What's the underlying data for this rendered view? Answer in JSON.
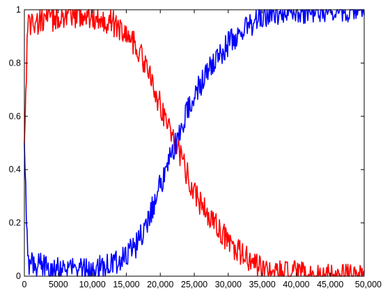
{
  "chart_data": {
    "type": "line",
    "title": "",
    "xlabel": "",
    "ylabel": "",
    "xlim": [
      0,
      50000
    ],
    "ylim": [
      0,
      1
    ],
    "grid": false,
    "x_ticks": [
      0,
      5000,
      10000,
      15000,
      20000,
      25000,
      30000,
      35000,
      40000,
      45000,
      50000
    ],
    "x_tick_labels": [
      "0",
      "5000",
      "10,000",
      "15,000",
      "20,000",
      "25,000",
      "30,000",
      "35,000",
      "40,000",
      "45,000",
      "50,000"
    ],
    "y_ticks": [
      0,
      0.2,
      0.4,
      0.6,
      0.8,
      1
    ],
    "y_tick_labels": [
      "0",
      "0.2",
      "0.4",
      "0.6",
      "0.8",
      "1"
    ],
    "series": [
      {
        "color": "#ff0000",
        "x": [
          0,
          500,
          1000,
          2000,
          3000,
          4000,
          5000,
          6000,
          7000,
          8000,
          9000,
          10000,
          11000,
          12000,
          13000,
          14000,
          15000,
          16000,
          17000,
          18000,
          19000,
          20000,
          21000,
          22000,
          23000,
          24000,
          25000,
          26000,
          27000,
          28000,
          29000,
          30000,
          31000,
          32000,
          33000,
          34000,
          35000,
          36000,
          37000,
          38000,
          40000,
          42000,
          44000,
          46000,
          48000,
          50000
        ],
        "values": [
          0.5,
          0.96,
          0.95,
          0.95,
          0.97,
          0.96,
          0.97,
          0.98,
          0.97,
          0.98,
          0.98,
          0.97,
          0.97,
          0.96,
          0.95,
          0.93,
          0.91,
          0.88,
          0.84,
          0.78,
          0.71,
          0.64,
          0.58,
          0.52,
          0.45,
          0.38,
          0.32,
          0.27,
          0.23,
          0.2,
          0.16,
          0.13,
          0.1,
          0.08,
          0.06,
          0.04,
          0.03,
          0.02,
          0.01,
          0.01,
          0.01,
          0.0,
          0.0,
          0.0,
          0.0,
          0.0
        ],
        "noise": 0.03
      },
      {
        "color": "#0000ff",
        "x": [
          0,
          500,
          1000,
          2000,
          3000,
          4000,
          5000,
          6000,
          7000,
          8000,
          9000,
          10000,
          11000,
          12000,
          13000,
          14000,
          15000,
          16000,
          17000,
          18000,
          19000,
          20000,
          21000,
          22000,
          23000,
          24000,
          25000,
          26000,
          27000,
          28000,
          29000,
          30000,
          31000,
          32000,
          33000,
          34000,
          35000,
          36000,
          37000,
          38000,
          40000,
          42000,
          44000,
          46000,
          48000,
          50000
        ],
        "values": [
          0.5,
          0.04,
          0.05,
          0.04,
          0.04,
          0.04,
          0.03,
          0.03,
          0.03,
          0.02,
          0.02,
          0.02,
          0.03,
          0.04,
          0.05,
          0.06,
          0.08,
          0.1,
          0.14,
          0.2,
          0.27,
          0.34,
          0.41,
          0.48,
          0.55,
          0.62,
          0.68,
          0.72,
          0.77,
          0.8,
          0.84,
          0.87,
          0.9,
          0.92,
          0.94,
          0.96,
          0.97,
          0.98,
          0.99,
          0.99,
          0.99,
          1.0,
          1.0,
          1.0,
          1.0,
          1.0
        ],
        "noise": 0.03
      }
    ]
  }
}
